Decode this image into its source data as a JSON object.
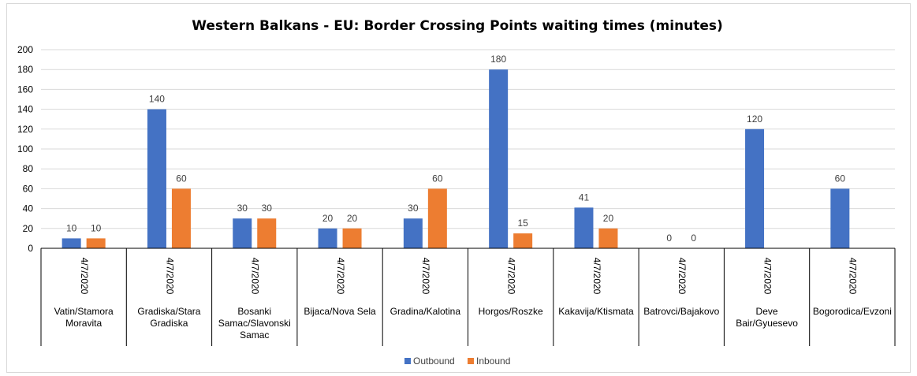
{
  "chart_data": {
    "type": "bar",
    "title": "Western Balkans - EU: Border Crossing Points waiting times (minutes)",
    "date_label": "4/7/2020",
    "categories": [
      [
        "Vatin/Stamora",
        "Moravita"
      ],
      [
        "Gradiska/Stara",
        "Gradiska"
      ],
      [
        "Bosanki",
        "Samac/Slavonski",
        "Samac"
      ],
      [
        "Bijaca/Nova Sela"
      ],
      [
        "Gradina/Kalotina"
      ],
      [
        "Horgos/Roszke"
      ],
      [
        "Kakavija/Ktismata"
      ],
      [
        "Batrovci/Bajakovo"
      ],
      [
        "Deve",
        "Bair/Gyuesevo"
      ],
      [
        "Bogorodica/Evzoni"
      ]
    ],
    "series": [
      {
        "name": "Outbound",
        "color": "#4472c4",
        "values": [
          10,
          140,
          30,
          20,
          30,
          180,
          41,
          0,
          120,
          60
        ]
      },
      {
        "name": "Inbound",
        "color": "#ed7d31",
        "values": [
          10,
          60,
          30,
          20,
          60,
          15,
          20,
          0,
          null,
          null
        ]
      }
    ],
    "ylim": [
      0,
      200
    ],
    "yticks": [
      0,
      20,
      40,
      60,
      80,
      100,
      120,
      140,
      160,
      180,
      200
    ],
    "grid": true,
    "legend_position": "bottom"
  }
}
